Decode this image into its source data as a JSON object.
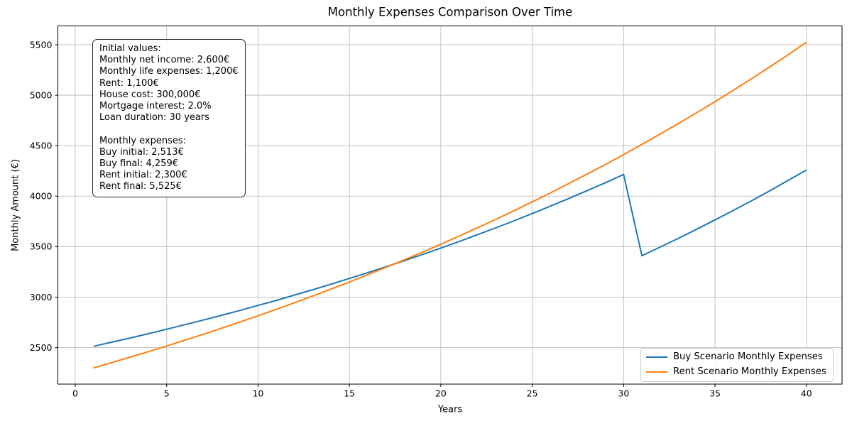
{
  "chart_data": {
    "type": "line",
    "title": "Monthly Expenses Comparison Over Time",
    "xlabel": "Years",
    "ylabel": "Monthly Amount (€)",
    "grid": true,
    "legend_position": "lower right",
    "xlim": [
      -0.95,
      41.95
    ],
    "ylim": [
      2138.75,
      5686.25
    ],
    "x_ticks": [
      0,
      5,
      10,
      15,
      20,
      25,
      30,
      35,
      40
    ],
    "y_ticks": [
      2500,
      3000,
      3500,
      4000,
      4500,
      5000,
      5500
    ],
    "x": [
      1,
      2,
      3,
      4,
      5,
      6,
      7,
      8,
      9,
      10,
      11,
      12,
      13,
      14,
      15,
      16,
      17,
      18,
      19,
      20,
      21,
      22,
      23,
      24,
      25,
      26,
      27,
      28,
      29,
      30,
      31,
      32,
      33,
      34,
      35,
      36,
      37,
      38,
      39,
      40
    ],
    "series": [
      {
        "name": "Buy Scenario Monthly Expenses",
        "color": "#1f77b4",
        "values": [
          2513,
          2554,
          2595,
          2638,
          2682,
          2727,
          2773,
          2820,
          2868,
          2918,
          2968,
          3021,
          3074,
          3129,
          3185,
          3242,
          3301,
          3361,
          3423,
          3486,
          3551,
          3618,
          3686,
          3756,
          3828,
          3902,
          3977,
          4054,
          4133,
          4215,
          3411,
          3496,
          3583,
          3673,
          3765,
          3859,
          3955,
          4054,
          4156,
          4259
        ]
      },
      {
        "name": "Rent Scenario Monthly Expenses",
        "color": "#ff7f0e",
        "values": [
          2300,
          2352,
          2406,
          2460,
          2516,
          2574,
          2632,
          2692,
          2753,
          2815,
          2879,
          2945,
          3012,
          3080,
          3150,
          3222,
          3295,
          3370,
          3446,
          3525,
          3605,
          3687,
          3770,
          3856,
          3944,
          4033,
          4125,
          4219,
          4314,
          4412,
          4513,
          4615,
          4720,
          4827,
          4937,
          5049,
          5164,
          5281,
          5401,
          5525
        ]
      }
    ],
    "annotation": {
      "lines": [
        "Initial values:",
        "Monthly net income: 2,600€",
        "Monthly life expenses: 1,200€",
        "Rent: 1,100€",
        "House cost: 300,000€",
        "Mortgage interest: 2.0%",
        "Loan duration: 30 years",
        "",
        "Monthly expenses:",
        "Buy initial: 2,513€",
        "Buy final: 4,259€",
        "Rent initial: 2,300€",
        "Rent final: 5,525€"
      ]
    },
    "key_values": {
      "buy_initial": "2,513€",
      "buy_final": "4,259€",
      "rent_initial": "2,300€",
      "rent_final": "5,525€"
    }
  },
  "style": {
    "grid_color": "#c3c3c3",
    "spine_color": "#000000",
    "text_color": "#000000",
    "line_width": 2
  }
}
